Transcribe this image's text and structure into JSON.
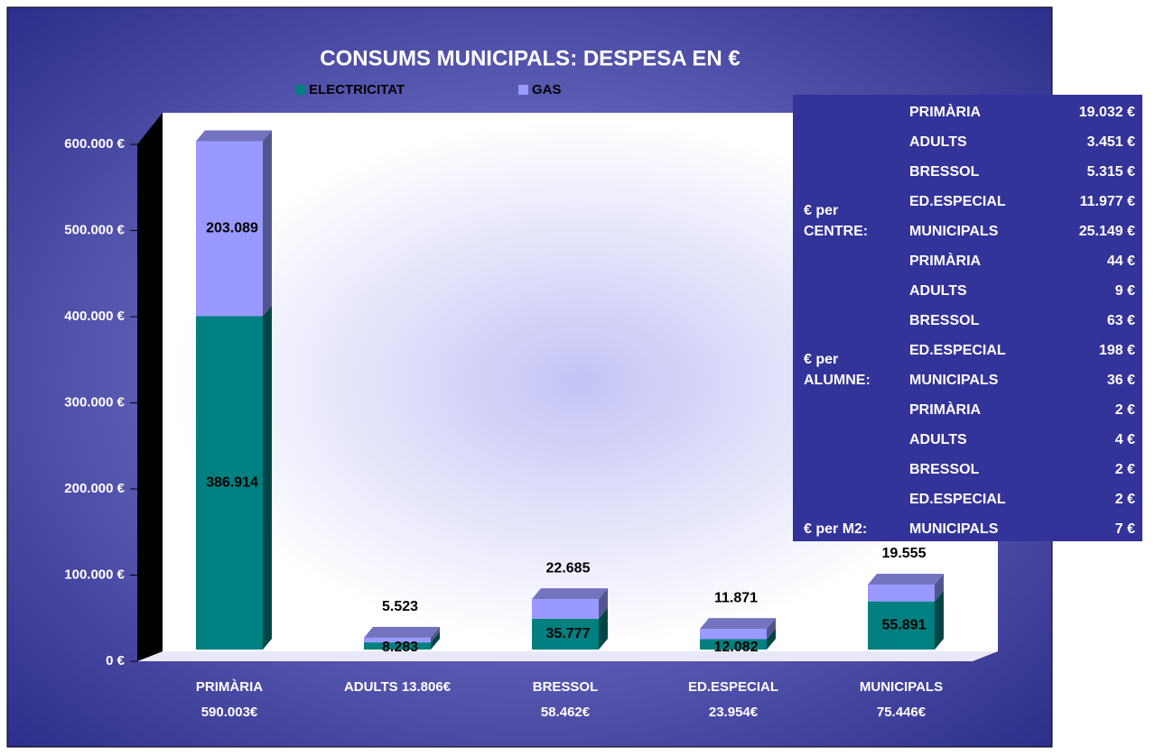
{
  "chart_data": {
    "type": "bar3d-stacked",
    "title": "CONSUMS MUNICIPALS: DESPESA EN €",
    "categories": [
      [
        "PRIMÀRIA",
        "590.003€"
      ],
      [
        "ADULTS 13.806€"
      ],
      [
        "BRESSOL",
        "58.462€"
      ],
      [
        "ED.ESPECIAL",
        "23.954€"
      ],
      [
        "MUNICIPALS",
        "75.446€"
      ]
    ],
    "series": [
      {
        "name": "ELECTRICITAT",
        "color": "#008080",
        "values": [
          386914,
          8283,
          35777,
          12082,
          55891
        ],
        "value_labels": [
          "386.914",
          "8.283",
          "35.777",
          "12.082",
          "55.891"
        ]
      },
      {
        "name": "GAS",
        "color": "#9999ff",
        "values": [
          203089,
          5523,
          22685,
          11871,
          19555
        ],
        "value_labels": [
          "203.089",
          "5.523",
          "22.685",
          "11.871",
          "19.555"
        ]
      }
    ],
    "ylim": [
      0,
      600000
    ],
    "yticks": [
      {
        "value": 0,
        "label": "0 €"
      },
      {
        "value": 100000,
        "label": "100.000 €"
      },
      {
        "value": 200000,
        "label": "200.000 €"
      },
      {
        "value": 300000,
        "label": "300.000 €"
      },
      {
        "value": 400000,
        "label": "400.000 €"
      },
      {
        "value": 500000,
        "label": "500.000 €"
      },
      {
        "value": 600000,
        "label": "600.000 €"
      }
    ],
    "table": {
      "groups": [
        {
          "label": [
            "€ per",
            "CENTRE:"
          ],
          "rows": [
            [
              "PRIMÀRIA",
              "19.032 €"
            ],
            [
              "ADULTS",
              "3.451 €"
            ],
            [
              "BRESSOL",
              "5.315 €"
            ],
            [
              "ED.ESPECIAL",
              "11.977 €"
            ],
            [
              "MUNICIPALS",
              "25.149 €"
            ]
          ]
        },
        {
          "label": [
            "€ per",
            "ALUMNE:"
          ],
          "rows": [
            [
              "PRIMÀRIA",
              "44 €"
            ],
            [
              "ADULTS",
              "9 €"
            ],
            [
              "BRESSOL",
              "63 €"
            ],
            [
              "ED.ESPECIAL",
              "198 €"
            ],
            [
              "MUNICIPALS",
              "36 €"
            ]
          ]
        },
        {
          "label": [
            "€ per M2:"
          ],
          "rows": [
            [
              "PRIMÀRIA",
              "2 €"
            ],
            [
              "ADULTS",
              "4 €"
            ],
            [
              "BRESSOL",
              "2 €"
            ],
            [
              "ED.ESPECIAL",
              "2 €"
            ],
            [
              "MUNICIPALS",
              "7 €"
            ]
          ]
        }
      ]
    }
  }
}
